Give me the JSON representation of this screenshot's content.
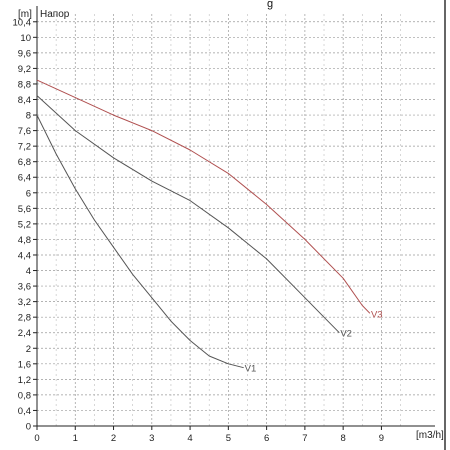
{
  "chart_data": {
    "type": "line",
    "title": "",
    "title_fragment": "g",
    "ylabel": "Напор",
    "yunit": "[m]",
    "xunit": "[m3/h]",
    "xlim": [
      0,
      10.4
    ],
    "ylim": [
      0,
      10.6
    ],
    "grid": true,
    "x_ticks": [
      {
        "v": 0,
        "label": "0"
      },
      {
        "v": 1,
        "label": "1"
      },
      {
        "v": 2,
        "label": "2"
      },
      {
        "v": 3,
        "label": "3"
      },
      {
        "v": 4,
        "label": "4"
      },
      {
        "v": 5,
        "label": "5"
      },
      {
        "v": 6,
        "label": "6"
      },
      {
        "v": 7,
        "label": "7"
      },
      {
        "v": 8,
        "label": "8"
      },
      {
        "v": 9,
        "label": "9"
      }
    ],
    "y_ticks": [
      {
        "v": 0,
        "label": "0"
      },
      {
        "v": 0.4,
        "label": "0,4"
      },
      {
        "v": 0.8,
        "label": "0,8"
      },
      {
        "v": 1.2,
        "label": "1,2"
      },
      {
        "v": 1.6,
        "label": "1,6"
      },
      {
        "v": 2,
        "label": "2"
      },
      {
        "v": 2.4,
        "label": "2,4"
      },
      {
        "v": 2.8,
        "label": "2,8"
      },
      {
        "v": 3.2,
        "label": "3,2"
      },
      {
        "v": 3.6,
        "label": "3,6"
      },
      {
        "v": 4,
        "label": "4"
      },
      {
        "v": 4.4,
        "label": "4,4"
      },
      {
        "v": 4.8,
        "label": "4,8"
      },
      {
        "v": 5.2,
        "label": "5,2"
      },
      {
        "v": 5.6,
        "label": "5,6"
      },
      {
        "v": 6,
        "label": "6"
      },
      {
        "v": 6.4,
        "label": "6,4"
      },
      {
        "v": 6.8,
        "label": "6,8"
      },
      {
        "v": 7.2,
        "label": "7,2"
      },
      {
        "v": 7.6,
        "label": "7,6"
      },
      {
        "v": 8,
        "label": "8"
      },
      {
        "v": 8.4,
        "label": "8,4"
      },
      {
        "v": 8.8,
        "label": "8,8"
      },
      {
        "v": 9.2,
        "label": "9,2"
      },
      {
        "v": 9.6,
        "label": "9,6"
      },
      {
        "v": 10,
        "label": "10"
      },
      {
        "v": 10.4,
        "label": "10,4"
      }
    ],
    "series": [
      {
        "name": "V1",
        "color": "#555555",
        "points": [
          [
            0,
            8.0
          ],
          [
            0.5,
            7.0
          ],
          [
            1,
            6.1
          ],
          [
            1.5,
            5.3
          ],
          [
            2,
            4.6
          ],
          [
            2.5,
            3.9
          ],
          [
            3,
            3.3
          ],
          [
            3.5,
            2.7
          ],
          [
            4,
            2.2
          ],
          [
            4.5,
            1.8
          ],
          [
            5,
            1.6
          ],
          [
            5.4,
            1.5
          ]
        ]
      },
      {
        "name": "V2",
        "color": "#555555",
        "points": [
          [
            0,
            8.5
          ],
          [
            1,
            7.6
          ],
          [
            2,
            6.9
          ],
          [
            3,
            6.3
          ],
          [
            4,
            5.8
          ],
          [
            5,
            5.1
          ],
          [
            6,
            4.3
          ],
          [
            7,
            3.3
          ],
          [
            7.5,
            2.8
          ],
          [
            7.9,
            2.4
          ]
        ]
      },
      {
        "name": "V3",
        "color": "#b05050",
        "points": [
          [
            0,
            8.9
          ],
          [
            1,
            8.45
          ],
          [
            2,
            8.0
          ],
          [
            3,
            7.6
          ],
          [
            4,
            7.1
          ],
          [
            5,
            6.5
          ],
          [
            6,
            5.7
          ],
          [
            7,
            4.8
          ],
          [
            8,
            3.8
          ],
          [
            8.5,
            3.1
          ],
          [
            8.7,
            2.9
          ]
        ]
      }
    ]
  }
}
